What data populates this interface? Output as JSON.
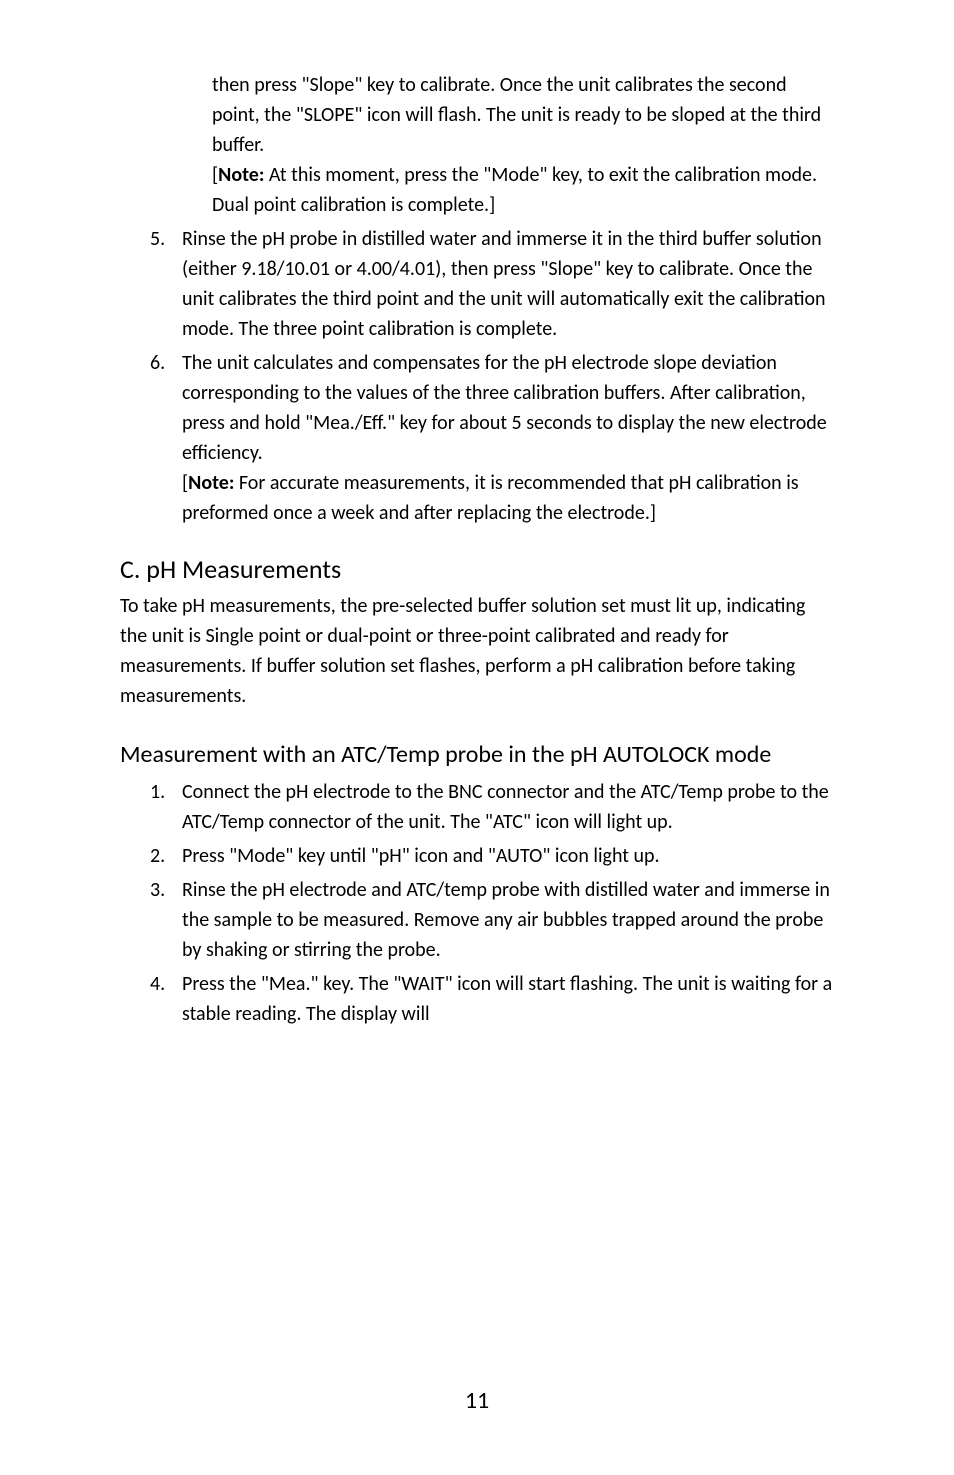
{
  "cont_item4_a": "then press \"Slope\" key to calibrate. Once the unit calibrates the second point, the \"SLOPE\" icon will flash. The unit is ready to be sloped at the third buffer.",
  "cont_item4_b_prefix": "[",
  "cont_item4_b_bold": "Note:",
  "cont_item4_b_rest": " At this moment, press the \"Mode\" key, to exit the calibration mode. Dual point calibration is complete.]",
  "num5": "5.",
  "item5": "Rinse the pH probe in distilled water and immerse it in the third buffer solution (either 9.18/10.01 or 4.00/4.01), then press \"Slope\" key to calibrate. Once the unit calibrates the third point and the unit will automatically exit the calibration mode. The three point calibration is complete.",
  "num6": "6.",
  "item6_a": "The unit calculates and compensates for the pH electrode slope deviation corresponding to the values of the three calibration buffers. After calibration, press and hold \"Mea./Eff.\" key for about 5 seconds to display the new electrode efficiency.",
  "item6_b_prefix": "[",
  "item6_b_bold": "Note:",
  "item6_b_rest": " For accurate measurements, it is recommended that pH calibration is preformed once a week and after replacing the electrode.]",
  "hC": "C. pH Measurements",
  "pC": "To take pH measurements, the pre-selected buffer solution set must lit up, indicating the unit is Single point or dual-point or three-point calibrated and ready for measurements. If buffer solution set flashes, perform a pH calibration before taking measurements.",
  "hMeas": "Measurement with an ATC/Temp probe in the pH AUTOLOCK mode",
  "m_num1": "1.",
  "m_item1": "Connect the pH electrode to the BNC connector and the ATC/Temp probe to the ATC/Temp connector of the unit. The \"ATC\" icon will light up.",
  "m_num2": "2.",
  "m_item2": "Press \"Mode\" key until \"pH\" icon and \"AUTO\" icon light up.",
  "m_num3": "3.",
  "m_item3": "Rinse the pH electrode and ATC/temp probe with distilled water and immerse in the sample to be measured. Remove any air bubbles trapped around the probe by shaking or stirring the probe.",
  "m_num4": "4.",
  "m_item4": "Press the \"Mea.\" key. The \"WAIT\" icon will start flashing. The unit is waiting for a stable reading. The display will",
  "pagenum": "11"
}
